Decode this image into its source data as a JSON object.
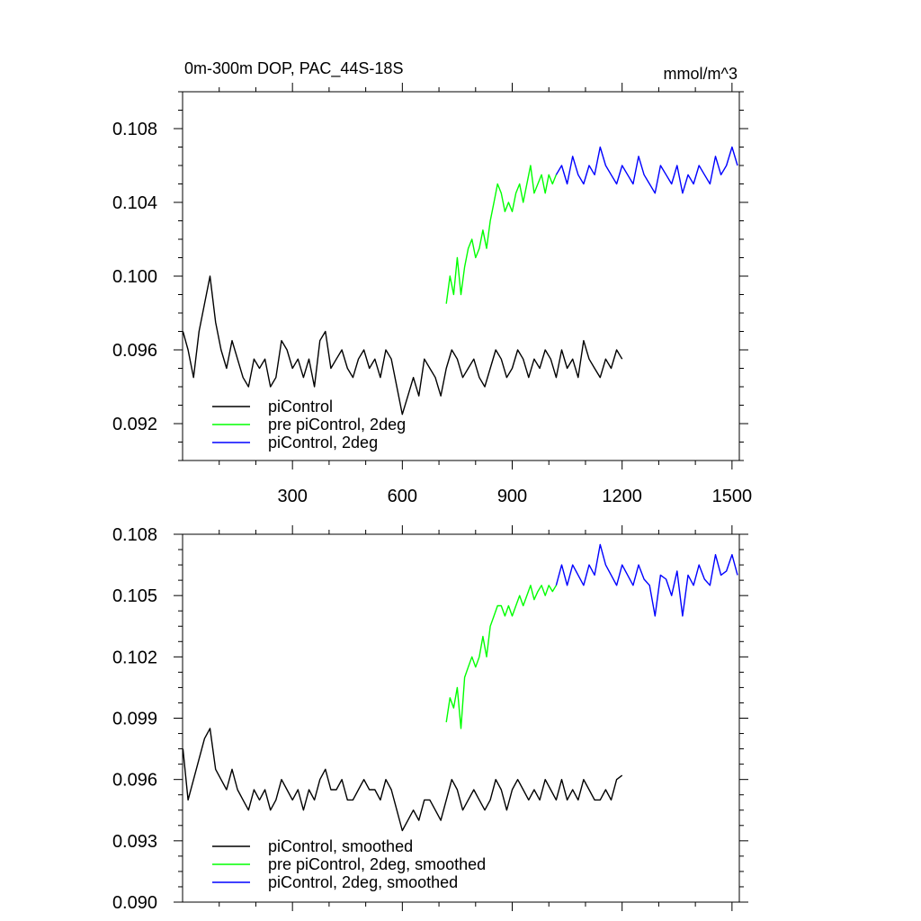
{
  "figure": {
    "title_left": "0m-300m DOP, PAC_44S-18S",
    "title_right": "mmol/m^3"
  },
  "colors": {
    "piControl": "#000000",
    "pre_piControl_2deg": "#00ff00",
    "piControl_2deg": "#0000ff"
  },
  "chart_data": [
    {
      "type": "line",
      "title": "0m-300m DOP, PAC_44S-18S",
      "units": "mmol/m^3",
      "xlim": [
        0,
        1520
      ],
      "ylim": [
        0.09,
        0.11
      ],
      "x_ticks": [
        300,
        600,
        900,
        1200,
        1500
      ],
      "x_tick_labels": [
        "300",
        "600",
        "900",
        "1200",
        "1500"
      ],
      "y_ticks": [
        0.092,
        0.096,
        0.1,
        0.104,
        0.108
      ],
      "y_tick_labels": [
        "0.092",
        "0.096",
        "0.100",
        "0.104",
        "0.108"
      ],
      "grid": false,
      "legend": "bottom-left",
      "series": [
        {
          "name": "piControl",
          "color": "#000000",
          "x": [
            1,
            15,
            30,
            45,
            60,
            75,
            90,
            105,
            120,
            135,
            150,
            165,
            180,
            195,
            210,
            225,
            240,
            255,
            270,
            285,
            300,
            315,
            330,
            345,
            360,
            375,
            390,
            405,
            420,
            435,
            450,
            465,
            480,
            495,
            510,
            525,
            540,
            555,
            570,
            585,
            600,
            615,
            630,
            645,
            660,
            675,
            690,
            705,
            720,
            735,
            750,
            765,
            780,
            795,
            810,
            825,
            840,
            855,
            870,
            885,
            900,
            915,
            930,
            945,
            960,
            975,
            990,
            1005,
            1020,
            1035,
            1050,
            1065,
            1080,
            1095,
            1110,
            1125,
            1140,
            1155,
            1170,
            1185,
            1200
          ],
          "values": [
            0.097,
            0.096,
            0.0945,
            0.097,
            0.0985,
            0.1,
            0.0975,
            0.096,
            0.095,
            0.0965,
            0.0955,
            0.0945,
            0.094,
            0.0955,
            0.095,
            0.0955,
            0.094,
            0.0945,
            0.0965,
            0.096,
            0.095,
            0.0955,
            0.0945,
            0.0955,
            0.094,
            0.0965,
            0.097,
            0.095,
            0.0955,
            0.096,
            0.095,
            0.0945,
            0.0955,
            0.096,
            0.095,
            0.0955,
            0.0945,
            0.096,
            0.0955,
            0.094,
            0.0925,
            0.0935,
            0.0945,
            0.0935,
            0.0955,
            0.095,
            0.0945,
            0.0935,
            0.095,
            0.096,
            0.0955,
            0.0945,
            0.095,
            0.0955,
            0.0945,
            0.094,
            0.095,
            0.096,
            0.0955,
            0.0945,
            0.095,
            0.096,
            0.0955,
            0.0945,
            0.0955,
            0.095,
            0.096,
            0.0955,
            0.0945,
            0.096,
            0.095,
            0.0955,
            0.0945,
            0.0965,
            0.0955,
            0.095,
            0.0945,
            0.0955,
            0.095,
            0.096,
            0.0955
          ]
        },
        {
          "name": "pre piControl, 2deg",
          "color": "#00ff00",
          "x": [
            720,
            730,
            740,
            750,
            760,
            770,
            780,
            790,
            800,
            810,
            820,
            830,
            840,
            850,
            860,
            870,
            880,
            890,
            900,
            910,
            920,
            930,
            940,
            950,
            960,
            970,
            980,
            990,
            1000,
            1010,
            1020
          ],
          "values": [
            0.0985,
            0.1,
            0.099,
            0.101,
            0.099,
            0.1005,
            0.1015,
            0.102,
            0.101,
            0.1015,
            0.1025,
            0.1015,
            0.103,
            0.104,
            0.105,
            0.1045,
            0.1035,
            0.104,
            0.1035,
            0.1045,
            0.105,
            0.104,
            0.105,
            0.106,
            0.1045,
            0.105,
            0.1055,
            0.1045,
            0.1055,
            0.105,
            0.1055
          ]
        },
        {
          "name": "piControl, 2deg",
          "color": "#0000ff",
          "x": [
            1020,
            1035,
            1050,
            1065,
            1080,
            1095,
            1110,
            1125,
            1140,
            1155,
            1170,
            1185,
            1200,
            1215,
            1230,
            1245,
            1260,
            1275,
            1290,
            1305,
            1320,
            1335,
            1350,
            1365,
            1380,
            1395,
            1410,
            1425,
            1440,
            1455,
            1470,
            1485,
            1500,
            1515
          ],
          "values": [
            0.1055,
            0.106,
            0.105,
            0.1065,
            0.1055,
            0.105,
            0.106,
            0.1055,
            0.107,
            0.106,
            0.1055,
            0.105,
            0.106,
            0.1055,
            0.105,
            0.1065,
            0.1055,
            0.105,
            0.1045,
            0.106,
            0.1055,
            0.105,
            0.106,
            0.1045,
            0.1055,
            0.105,
            0.106,
            0.1055,
            0.105,
            0.1065,
            0.1055,
            0.106,
            0.107,
            0.106
          ]
        }
      ]
    },
    {
      "type": "line",
      "xlim": [
        0,
        1520
      ],
      "ylim": [
        0.09,
        0.108
      ],
      "x_ticks": [
        300,
        600,
        900,
        1200,
        1500
      ],
      "y_ticks": [
        0.09,
        0.093,
        0.096,
        0.099,
        0.102,
        0.105,
        0.108
      ],
      "y_tick_labels": [
        "0.090",
        "0.093",
        "0.096",
        "0.099",
        "0.102",
        "0.105",
        "0.108"
      ],
      "grid": false,
      "legend": "bottom-left",
      "series": [
        {
          "name": "piControl, smoothed",
          "color": "#000000",
          "x": [
            1,
            15,
            30,
            45,
            60,
            75,
            90,
            105,
            120,
            135,
            150,
            165,
            180,
            195,
            210,
            225,
            240,
            255,
            270,
            285,
            300,
            315,
            330,
            345,
            360,
            375,
            390,
            405,
            420,
            435,
            450,
            465,
            480,
            495,
            510,
            525,
            540,
            555,
            570,
            585,
            600,
            615,
            630,
            645,
            660,
            675,
            690,
            705,
            720,
            735,
            750,
            765,
            780,
            795,
            810,
            825,
            840,
            855,
            870,
            885,
            900,
            915,
            930,
            945,
            960,
            975,
            990,
            1005,
            1020,
            1035,
            1050,
            1065,
            1080,
            1095,
            1110,
            1125,
            1140,
            1155,
            1170,
            1185,
            1200
          ],
          "values": [
            0.0975,
            0.095,
            0.096,
            0.097,
            0.098,
            0.0985,
            0.0965,
            0.096,
            0.0955,
            0.0965,
            0.0955,
            0.095,
            0.0945,
            0.0955,
            0.095,
            0.0955,
            0.0945,
            0.095,
            0.096,
            0.0955,
            0.095,
            0.0955,
            0.0945,
            0.0955,
            0.095,
            0.096,
            0.0965,
            0.0955,
            0.0955,
            0.096,
            0.095,
            0.095,
            0.0955,
            0.096,
            0.0955,
            0.0955,
            0.095,
            0.096,
            0.0955,
            0.0945,
            0.0935,
            0.094,
            0.0945,
            0.094,
            0.095,
            0.095,
            0.0945,
            0.094,
            0.095,
            0.096,
            0.0955,
            0.0945,
            0.095,
            0.0955,
            0.095,
            0.0945,
            0.095,
            0.096,
            0.0955,
            0.0945,
            0.0955,
            0.096,
            0.0955,
            0.095,
            0.0955,
            0.095,
            0.096,
            0.0955,
            0.095,
            0.096,
            0.095,
            0.0955,
            0.095,
            0.096,
            0.0955,
            0.095,
            0.095,
            0.0955,
            0.095,
            0.096,
            0.0962
          ]
        },
        {
          "name": "pre piControl, 2deg, smoothed",
          "color": "#00ff00",
          "x": [
            720,
            730,
            740,
            750,
            760,
            770,
            780,
            790,
            800,
            810,
            820,
            830,
            840,
            850,
            860,
            870,
            880,
            890,
            900,
            910,
            920,
            930,
            940,
            950,
            960,
            970,
            980,
            990,
            1000,
            1010,
            1020
          ],
          "values": [
            0.0988,
            0.1,
            0.0995,
            0.1005,
            0.0985,
            0.101,
            0.1015,
            0.102,
            0.1015,
            0.102,
            0.103,
            0.102,
            0.1035,
            0.104,
            0.1045,
            0.1045,
            0.104,
            0.1045,
            0.104,
            0.1045,
            0.105,
            0.1045,
            0.105,
            0.1055,
            0.1048,
            0.1052,
            0.1055,
            0.105,
            0.1055,
            0.1052,
            0.1055
          ]
        },
        {
          "name": "piControl, 2deg, smoothed",
          "color": "#0000ff",
          "x": [
            1020,
            1035,
            1050,
            1065,
            1080,
            1095,
            1110,
            1125,
            1140,
            1155,
            1170,
            1185,
            1200,
            1215,
            1230,
            1245,
            1260,
            1275,
            1290,
            1305,
            1320,
            1335,
            1350,
            1365,
            1380,
            1395,
            1410,
            1425,
            1440,
            1455,
            1470,
            1485,
            1500,
            1515
          ],
          "values": [
            0.1055,
            0.1065,
            0.1055,
            0.1065,
            0.106,
            0.1055,
            0.1065,
            0.106,
            0.1075,
            0.1065,
            0.106,
            0.1055,
            0.1065,
            0.106,
            0.1055,
            0.1065,
            0.1058,
            0.1055,
            0.104,
            0.106,
            0.1058,
            0.105,
            0.1062,
            0.104,
            0.106,
            0.1055,
            0.1065,
            0.1058,
            0.1055,
            0.107,
            0.106,
            0.1062,
            0.107,
            0.106
          ]
        }
      ]
    }
  ]
}
